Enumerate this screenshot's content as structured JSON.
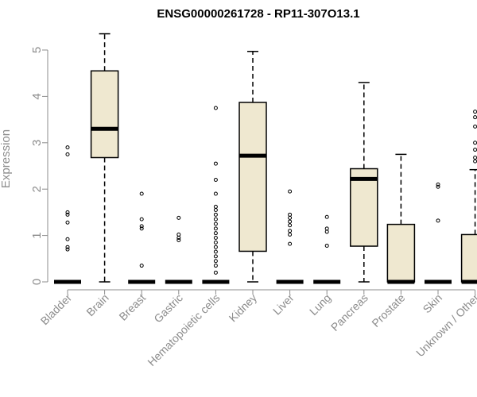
{
  "chart_data": {
    "type": "boxplot",
    "title": "ENSG00000261728 - RP11-307O13.1",
    "ylabel": "Expression",
    "xlabel": "",
    "ylim": [
      0,
      5.5
    ],
    "yticks": [
      0,
      1,
      2,
      3,
      4,
      5
    ],
    "box_fill": "#efe8d0",
    "outline_color": "#000000",
    "categories": [
      "Bladder",
      "Brain",
      "Breast",
      "Gastric",
      "Hematopoietic cells",
      "Kidney",
      "Liver",
      "Lung",
      "Pancreas",
      "Prostate",
      "Skin",
      "Unknown / Other"
    ],
    "boxes": [
      {
        "min": 0,
        "q1": 0,
        "median": 0,
        "q3": 0,
        "max": 0,
        "outliers": [
          0.7,
          0.75,
          0.92,
          1.28,
          1.45,
          1.5,
          2.75,
          2.9
        ]
      },
      {
        "min": 0,
        "q1": 2.68,
        "median": 3.3,
        "q3": 4.55,
        "max": 5.35,
        "outliers": []
      },
      {
        "min": 0,
        "q1": 0,
        "median": 0,
        "q3": 0,
        "max": 0,
        "outliers": [
          0.35,
          1.15,
          1.2,
          1.35,
          1.9
        ]
      },
      {
        "min": 0,
        "q1": 0,
        "median": 0,
        "q3": 0,
        "max": 0,
        "outliers": [
          0.9,
          0.95,
          1.02,
          1.38
        ]
      },
      {
        "min": 0,
        "q1": 0,
        "median": 0,
        "q3": 0,
        "max": 0,
        "outliers": [
          0.2,
          0.35,
          0.45,
          0.55,
          0.65,
          0.75,
          0.85,
          0.95,
          1.05,
          1.15,
          1.25,
          1.35,
          1.45,
          1.55,
          1.62,
          1.9,
          2.2,
          2.55,
          3.75
        ]
      },
      {
        "min": 0,
        "q1": 0.66,
        "median": 2.72,
        "q3": 3.87,
        "max": 4.97,
        "outliers": []
      },
      {
        "min": 0,
        "q1": 0,
        "median": 0,
        "q3": 0,
        "max": 0,
        "outliers": [
          0.82,
          1.02,
          1.1,
          1.22,
          1.3,
          1.38,
          1.45,
          1.95
        ]
      },
      {
        "min": 0,
        "q1": 0,
        "median": 0,
        "q3": 0,
        "max": 0,
        "outliers": [
          0.78,
          1.08,
          1.15,
          1.4
        ]
      },
      {
        "min": 0,
        "q1": 0.77,
        "median": 2.22,
        "q3": 2.44,
        "max": 4.3,
        "outliers": []
      },
      {
        "min": 0,
        "q1": 0,
        "median": 0,
        "q3": 1.24,
        "max": 2.75,
        "outliers": []
      },
      {
        "min": 0,
        "q1": 0,
        "median": 0,
        "q3": 0,
        "max": 0,
        "outliers": [
          1.32,
          2.05,
          2.1
        ]
      },
      {
        "min": 0,
        "q1": 0,
        "median": 0,
        "q3": 1.02,
        "max": 2.42,
        "outliers": [
          2.6,
          2.68,
          2.85,
          3.0,
          3.35,
          3.55,
          3.67
        ]
      }
    ]
  }
}
